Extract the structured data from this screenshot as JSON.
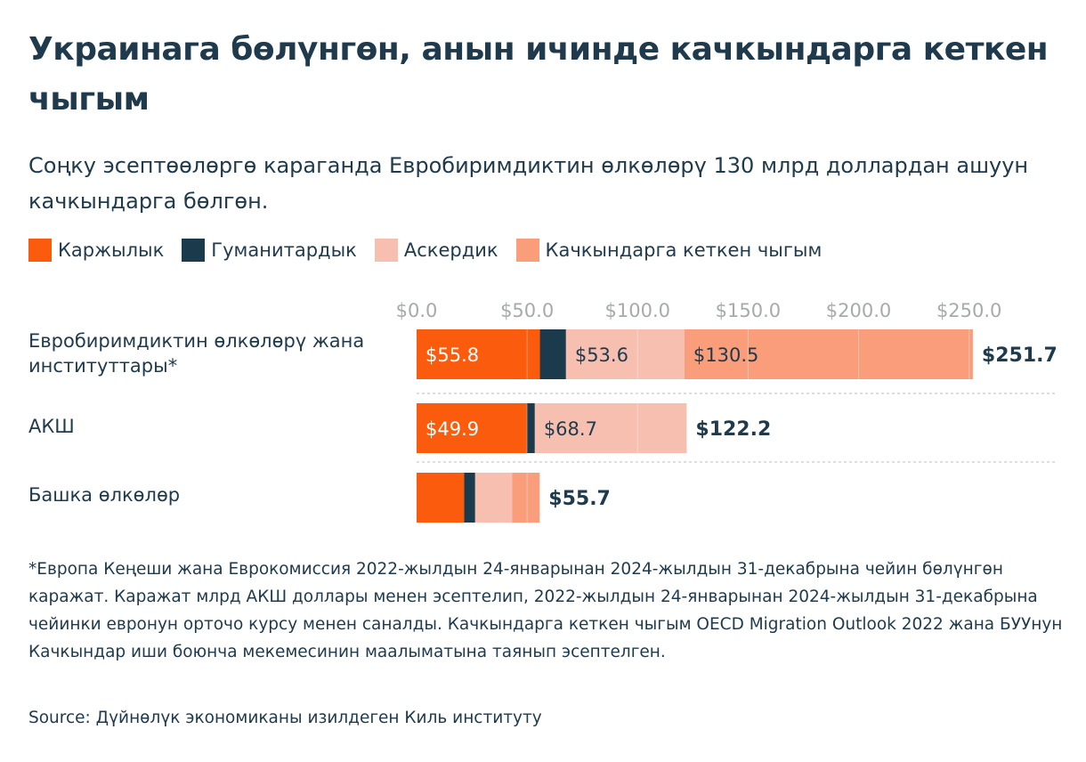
{
  "title": "Украинага бөлүнгөн, анын ичинде качкындарга кеткен чыгым",
  "subtitle": "Соңку эсептөөлөргө караганда Евробиримдиктин өлкөлөрү 130 млрд доллардан ашуун качкындарга бөлгөн.",
  "legend": [
    {
      "label": "Каржылык",
      "color": "#fb5b0d"
    },
    {
      "label": "Гуманитардык",
      "color": "#1b3a4b"
    },
    {
      "label": "Аскердик",
      "color": "#f6bfb0"
    },
    {
      "label": "Качкындарга кеткен чыгым",
      "color": "#f99d7b"
    }
  ],
  "chart_data": {
    "type": "bar",
    "orientation": "horizontal",
    "stacked": true,
    "categories": [
      "Евробиримдиктин өлкөлөрү жана институттары*",
      "АКШ",
      "Башка өлкөлөр"
    ],
    "series": [
      {
        "name": "Каржылык",
        "color": "#fb5b0d",
        "values": [
          55.8,
          49.9,
          21.5
        ]
      },
      {
        "name": "Гуманитардык",
        "color": "#1b3a4b",
        "values": [
          11.8,
          3.6,
          5.0
        ]
      },
      {
        "name": "Аскердик",
        "color": "#f6bfb0",
        "values": [
          53.6,
          68.7,
          16.7
        ]
      },
      {
        "name": "Качкындарга кеткен чыгым",
        "color": "#f99d7b",
        "values": [
          130.5,
          0,
          12.5
        ]
      }
    ],
    "segment_labels": [
      [
        "$55.8",
        "",
        "$53.6",
        "$130.5"
      ],
      [
        "$49.9",
        "",
        "$68.7",
        ""
      ],
      [
        "",
        "",
        "",
        ""
      ]
    ],
    "totals": [
      251.7,
      122.2,
      55.7
    ],
    "total_labels": [
      "$251.7",
      "$122.2",
      "$55.7"
    ],
    "ticks": [
      0,
      50,
      100,
      150,
      200,
      250
    ],
    "tick_labels": [
      "$0.0",
      "$50.0",
      "$100.0",
      "$150.0",
      "$200.0",
      "$250.0"
    ],
    "xlim": [
      0,
      290
    ],
    "grid": true
  },
  "footnote": "*Европа Кеңеши жана Еврокомиссия 2022-жылдын 24-январынан 2024-жылдын 31-декабрына чейин бөлүнгөн каражат. Каражат млрд АКШ доллары менен эсептелип, 2022-жылдын 24-январынан 2024-жылдын 31-декабрына чейинки евронун орточо курсу менен саналды. Качкындарга кеткен чыгым OECD Migration Outlook 2022 жана БУУнун Качкындар иши боюнча мекемесинин маалыматына таянып эсептелген.",
  "source": "Source: Дүйнөлүк экономиканы изилдеген Киль институту"
}
